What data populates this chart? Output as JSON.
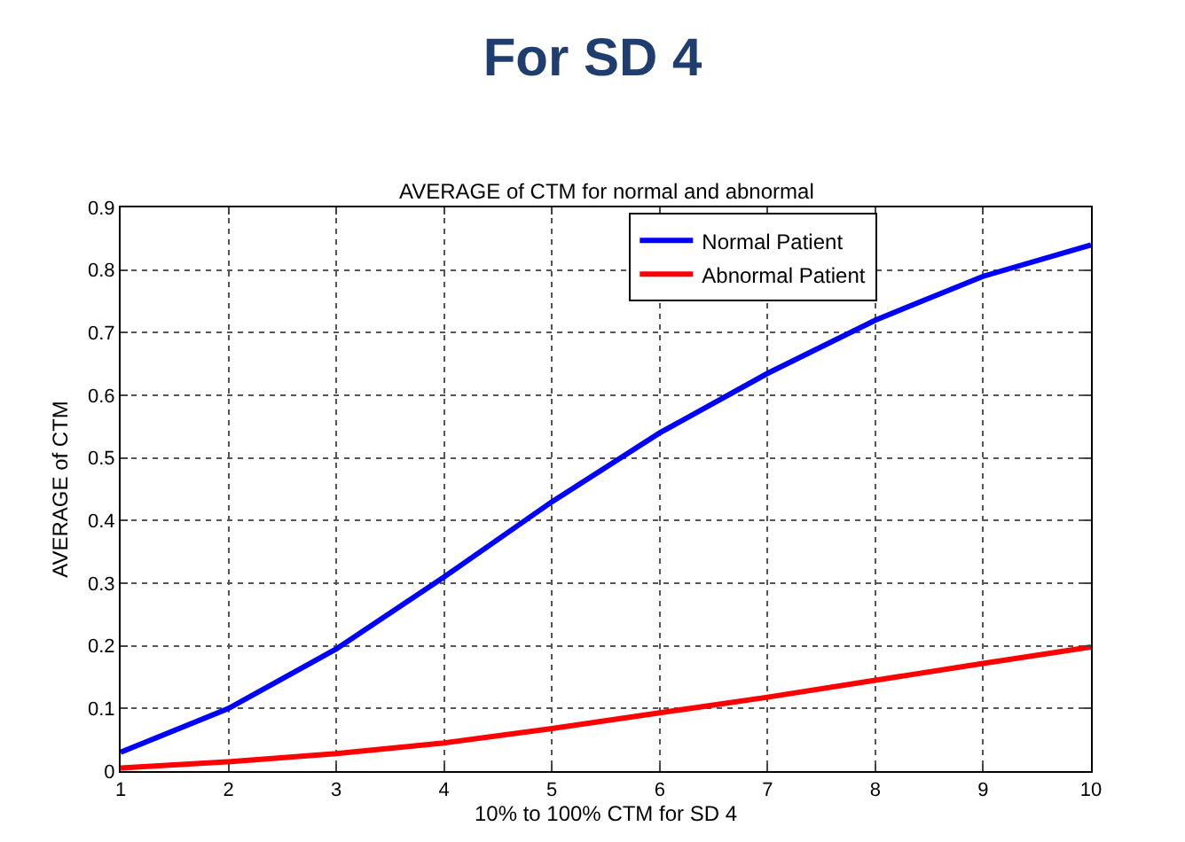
{
  "chart_data": {
    "type": "line",
    "title": "For SD 4",
    "subtitle": "AVERAGE of CTM for normal and abnormal",
    "xlabel": "10% to 100% CTM for SD 4",
    "ylabel": "AVERAGE of CTM",
    "x": [
      1,
      2,
      3,
      4,
      5,
      6,
      7,
      8,
      9,
      10
    ],
    "series": [
      {
        "name": "Normal Patient",
        "color": "#0000ff",
        "values": [
          0.03,
          0.1,
          0.195,
          0.31,
          0.43,
          0.54,
          0.635,
          0.72,
          0.79,
          0.84
        ]
      },
      {
        "name": "Abnormal Patient",
        "color": "#ff0000",
        "values": [
          0.005,
          0.015,
          0.028,
          0.045,
          0.068,
          0.093,
          0.118,
          0.145,
          0.172,
          0.198
        ]
      }
    ],
    "xlim": [
      1,
      10
    ],
    "xticks": [
      1,
      2,
      3,
      4,
      5,
      6,
      7,
      8,
      9,
      10
    ],
    "ylim": [
      0,
      0.9
    ],
    "yticks": [
      0,
      0.1,
      0.2,
      0.3,
      0.4,
      0.5,
      0.6,
      0.7,
      0.8,
      0.9
    ],
    "grid": true,
    "legend": "top right",
    "marker": "none",
    "line_style": "solid"
  }
}
